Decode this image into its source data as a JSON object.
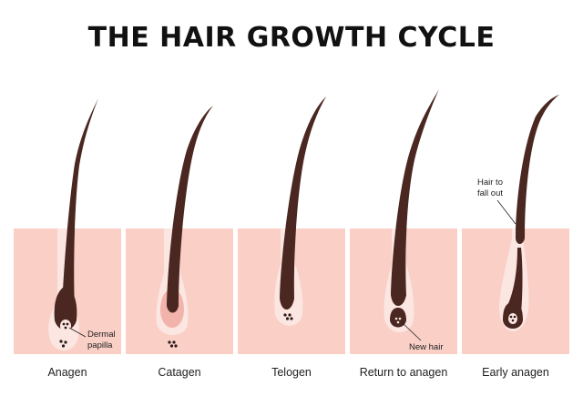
{
  "title": "THE HAIR GROWTH CYCLE",
  "stages": [
    {
      "id": "anagen",
      "label": "Anagen"
    },
    {
      "id": "catagen",
      "label": "Catagen"
    },
    {
      "id": "telogen",
      "label": "Telogen"
    },
    {
      "id": "return-to-anagen",
      "label": "Return to anagen"
    },
    {
      "id": "early-anagen",
      "label": "Early anagen"
    }
  ],
  "callouts": {
    "dermal_papilla_line1": "Dermal",
    "dermal_papilla_line2": "papilla",
    "new_hair": "New hair",
    "fall_out_line1": "Hair to",
    "fall_out_line2": "fall out"
  },
  "colors": {
    "skin": "#f9cfc6",
    "follicle": "#fce6e2",
    "hair": "#4a2720",
    "catagen_bulb": "#f2b3aa",
    "papilla_dots": "#2b1b18"
  }
}
